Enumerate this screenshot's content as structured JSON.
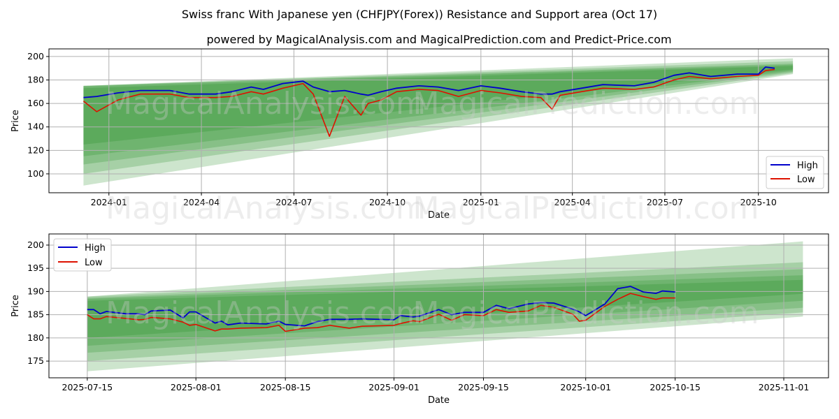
{
  "title": "Swiss franc With Japanese yen (CHFJPY(Forex)) Resistance and Support area (Oct 17)",
  "subtitle": "powered by MagicalAnalysis.com and MagicalPrediction.com and Predict-Price.com",
  "watermarks": [
    "MagicalAnalysis.com",
    "MagicalPrediction.com"
  ],
  "colors": {
    "high": "#0000cc",
    "low": "#dd1100",
    "band": "#1a8a1a"
  },
  "chart_data": [
    {
      "type": "line",
      "xlabel": "Date",
      "ylabel": "Price",
      "xlim": [
        "2023-11-03",
        "2025-12-09"
      ],
      "ylim": [
        83.9,
        206.5
      ],
      "yticks": [
        100,
        120,
        140,
        160,
        180,
        200
      ],
      "xticks": [
        {
          "date": "2024-01-01",
          "label": "2024-01"
        },
        {
          "date": "2024-04-01",
          "label": "2024-04"
        },
        {
          "date": "2024-07-01",
          "label": "2024-07"
        },
        {
          "date": "2024-10-01",
          "label": "2024-10"
        },
        {
          "date": "2025-01-01",
          "label": "2025-01"
        },
        {
          "date": "2025-04-01",
          "label": "2025-04"
        },
        {
          "date": "2025-07-01",
          "label": "2025-07"
        },
        {
          "date": "2025-10-01",
          "label": "2025-10"
        }
      ],
      "grid": true,
      "legend": {
        "placement": "bottom-right",
        "entries": [
          "High",
          "Low"
        ]
      },
      "bands": {
        "start": "2023-12-07",
        "end": "2025-11-04",
        "layers": [
          {
            "start": [
              90,
              175
            ],
            "end": [
              185,
              198.5
            ]
          },
          {
            "start": [
              100,
              175
            ],
            "end": [
              186,
              196
            ]
          },
          {
            "start": [
              108,
              175
            ],
            "end": [
              187,
              194
            ]
          },
          {
            "start": [
              115,
              174.5
            ],
            "end": [
              188,
              193
            ]
          },
          {
            "start": [
              125,
              173
            ],
            "end": [
              189,
              192
            ]
          }
        ]
      },
      "x": [
        "2023-12-07",
        "2023-12-20",
        "2024-01-10",
        "2024-02-01",
        "2024-03-01",
        "2024-03-20",
        "2024-04-15",
        "2024-05-01",
        "2024-05-20",
        "2024-06-01",
        "2024-06-20",
        "2024-07-10",
        "2024-07-20",
        "2024-08-05",
        "2024-08-20",
        "2024-09-05",
        "2024-09-12",
        "2024-09-25",
        "2024-10-10",
        "2024-11-01",
        "2024-11-20",
        "2024-12-10",
        "2025-01-01",
        "2025-01-20",
        "2025-02-10",
        "2025-03-01",
        "2025-03-12",
        "2025-03-20",
        "2025-04-10",
        "2025-05-01",
        "2025-06-01",
        "2025-06-20",
        "2025-07-10",
        "2025-07-25",
        "2025-08-15",
        "2025-09-10",
        "2025-10-01",
        "2025-10-08",
        "2025-10-17"
      ],
      "series": [
        {
          "name": "High",
          "values": [
            165,
            166,
            169,
            171,
            171,
            168,
            168,
            170,
            174,
            172,
            177,
            179,
            174,
            170,
            171,
            168,
            167,
            170,
            173,
            175,
            174,
            171,
            175,
            173,
            170,
            168,
            168,
            170,
            173,
            176,
            175,
            178,
            184,
            186,
            183,
            185,
            185,
            191,
            190
          ]
        },
        {
          "name": "Low",
          "values": [
            162,
            153,
            163,
            168,
            168,
            165,
            165,
            166,
            170,
            168,
            173,
            177,
            168,
            132,
            166,
            150,
            160,
            163,
            170,
            172,
            171,
            166,
            171,
            169,
            166,
            165,
            155,
            167,
            170,
            173,
            172,
            174,
            180,
            183,
            181,
            183,
            184,
            188,
            189
          ]
        }
      ]
    },
    {
      "type": "line",
      "xlabel": "Date",
      "ylabel": "Price",
      "xlim": [
        "2025-07-09",
        "2025-11-08"
      ],
      "ylim": [
        171.4,
        202.4
      ],
      "yticks": [
        175,
        180,
        185,
        190,
        195,
        200
      ],
      "xticks": [
        {
          "date": "2025-07-15",
          "label": "2025-07-15"
        },
        {
          "date": "2025-08-01",
          "label": "2025-08-01"
        },
        {
          "date": "2025-08-15",
          "label": "2025-08-15"
        },
        {
          "date": "2025-09-01",
          "label": "2025-09-01"
        },
        {
          "date": "2025-09-15",
          "label": "2025-09-15"
        },
        {
          "date": "2025-10-01",
          "label": "2025-10-01"
        },
        {
          "date": "2025-10-15",
          "label": "2025-10-15"
        },
        {
          "date": "2025-11-01",
          "label": "2025-11-01"
        }
      ],
      "grid": true,
      "legend": {
        "placement": "top-left",
        "entries": [
          "High",
          "Low"
        ]
      },
      "bands": {
        "start": "2025-07-15",
        "end": "2025-11-04",
        "layers": [
          {
            "start": [
              172.8,
              188.9
            ],
            "end": [
              184.6,
              200.8
            ]
          },
          {
            "start": [
              175,
              188.9
            ],
            "end": [
              185.5,
              196.3
            ]
          },
          {
            "start": [
              176.8,
              188.6
            ],
            "end": [
              186.5,
              194.8
            ]
          },
          {
            "start": [
              178.3,
              188.4
            ],
            "end": [
              188,
              193.5
            ]
          },
          {
            "start": [
              180,
              188
            ],
            "end": [
              189.5,
              192.5
            ]
          }
        ]
      },
      "x": [
        "2025-07-15",
        "2025-07-16",
        "2025-07-17",
        "2025-07-18",
        "2025-07-21",
        "2025-07-23",
        "2025-07-24",
        "2025-07-25",
        "2025-07-28",
        "2025-07-30",
        "2025-07-31",
        "2025-08-01",
        "2025-08-04",
        "2025-08-05",
        "2025-08-06",
        "2025-08-08",
        "2025-08-12",
        "2025-08-14",
        "2025-08-15",
        "2025-08-18",
        "2025-08-20",
        "2025-08-22",
        "2025-08-25",
        "2025-08-27",
        "2025-09-01",
        "2025-09-02",
        "2025-09-04",
        "2025-09-05",
        "2025-09-08",
        "2025-09-10",
        "2025-09-12",
        "2025-09-15",
        "2025-09-17",
        "2025-09-19",
        "2025-09-22",
        "2025-09-24",
        "2025-09-26",
        "2025-09-29",
        "2025-09-30",
        "2025-10-01",
        "2025-10-04",
        "2025-10-06",
        "2025-10-08",
        "2025-10-10",
        "2025-10-12",
        "2025-10-13",
        "2025-10-15"
      ],
      "series": [
        {
          "name": "High",
          "values": [
            186.1,
            186.1,
            185.2,
            185.7,
            185.2,
            185.2,
            185.0,
            185.8,
            186.0,
            184.3,
            185.6,
            185.6,
            183.2,
            183.6,
            182.8,
            183.2,
            183.0,
            183.6,
            182.9,
            182.6,
            183.5,
            184.0,
            184.0,
            184.1,
            183.9,
            184.8,
            184.5,
            184.7,
            186.1,
            185.0,
            185.5,
            185.5,
            187.0,
            186.3,
            187.3,
            187.6,
            187.5,
            186.2,
            185.6,
            184.8,
            187.3,
            190.6,
            191.1,
            189.9,
            189.6,
            190.1,
            189.9
          ]
        },
        {
          "name": "Low",
          "values": [
            185.0,
            184.1,
            184.1,
            184.6,
            184.2,
            183.9,
            184.0,
            184.4,
            184.1,
            183.4,
            182.7,
            182.9,
            181.5,
            181.9,
            181.9,
            182.1,
            182.2,
            182.7,
            181.4,
            182.1,
            182.2,
            182.7,
            182.1,
            182.5,
            182.7,
            183.1,
            183.7,
            183.5,
            185.1,
            183.8,
            185.0,
            184.8,
            186.1,
            185.5,
            185.8,
            187.0,
            186.6,
            185.1,
            183.6,
            183.8,
            186.8,
            188.3,
            189.6,
            188.9,
            188.3,
            188.6,
            188.6
          ]
        }
      ]
    }
  ]
}
